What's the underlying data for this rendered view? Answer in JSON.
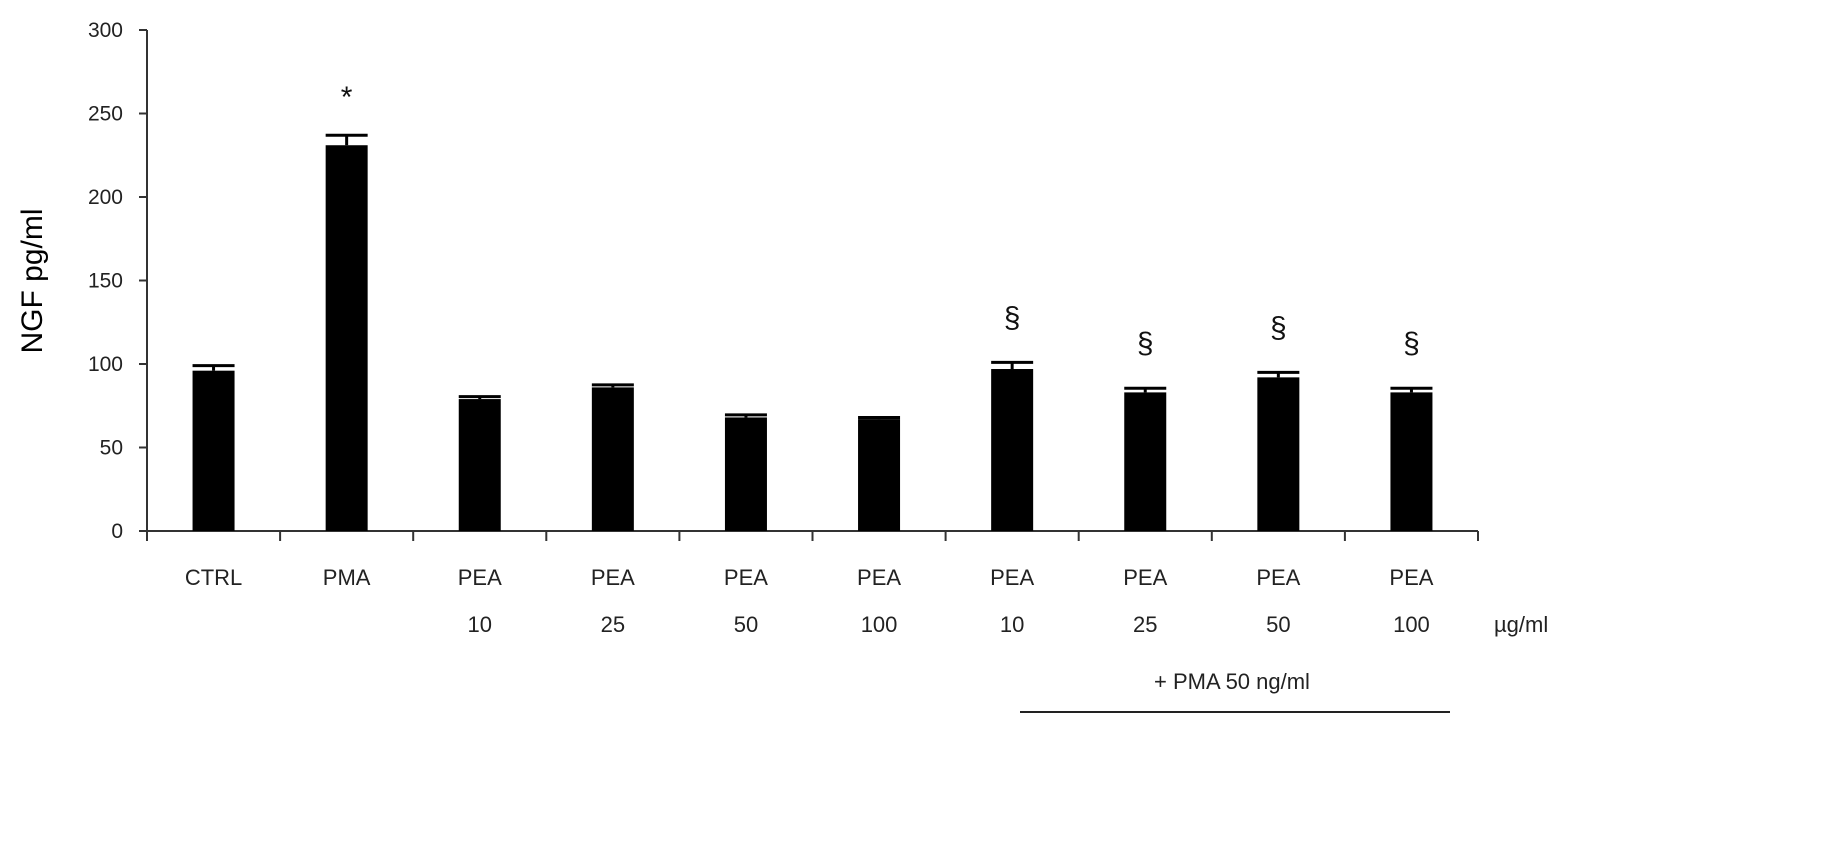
{
  "chart_data": {
    "type": "bar",
    "ylabel": "NGF pg/ml",
    "ylim": [
      0,
      300
    ],
    "yticks": [
      0,
      50,
      100,
      150,
      200,
      250,
      300
    ],
    "grid": false,
    "categories": [
      {
        "line1": "CTRL",
        "line2": ""
      },
      {
        "line1": "PMA",
        "line2": ""
      },
      {
        "line1": "PEA",
        "line2": "10"
      },
      {
        "line1": "PEA",
        "line2": "25"
      },
      {
        "line1": "PEA",
        "line2": "50"
      },
      {
        "line1": "PEA",
        "line2": "100"
      },
      {
        "line1": "PEA",
        "line2": "10"
      },
      {
        "line1": "PEA",
        "line2": "25"
      },
      {
        "line1": "PEA",
        "line2": "50"
      },
      {
        "line1": "PEA",
        "line2": "100"
      }
    ],
    "values": [
      96,
      231,
      79,
      86,
      68,
      67,
      97,
      83,
      92,
      83
    ],
    "errors": [
      3,
      6,
      1.5,
      1.5,
      1.5,
      1,
      4,
      2.5,
      3,
      2.5
    ],
    "annotations": [
      "",
      "*",
      "",
      "",
      "",
      "",
      "§",
      "§",
      "§",
      "§"
    ],
    "unit_label": "µg/ml",
    "group_label": "+ PMA 50  ng/ml"
  }
}
